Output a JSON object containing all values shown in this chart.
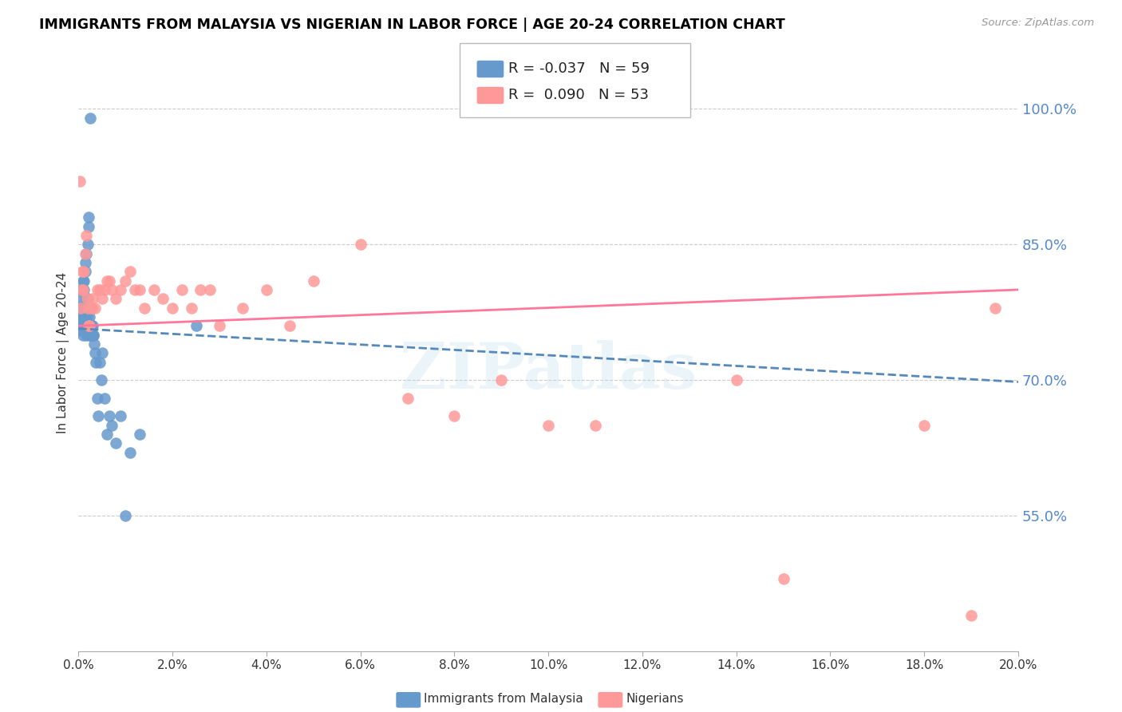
{
  "title": "IMMIGRANTS FROM MALAYSIA VS NIGERIAN IN LABOR FORCE | AGE 20-24 CORRELATION CHART",
  "source": "Source: ZipAtlas.com",
  "ylabel": "In Labor Force | Age 20-24",
  "yticks": [
    0.55,
    0.7,
    0.85,
    1.0
  ],
  "ytick_labels": [
    "55.0%",
    "70.0%",
    "85.0%",
    "100.0%"
  ],
  "xmin": 0.0,
  "xmax": 0.2,
  "ymin": 0.4,
  "ymax": 1.06,
  "legend_blue_r": "-0.037",
  "legend_blue_n": "59",
  "legend_pink_r": "0.090",
  "legend_pink_n": "53",
  "blue_color": "#6699CC",
  "pink_color": "#FF9999",
  "blue_line_color": "#5588BB",
  "pink_line_color": "#FF7799",
  "watermark": "ZIPatlas",
  "malaysia_x": [
    0.0002,
    0.0003,
    0.0004,
    0.0005,
    0.0006,
    0.0007,
    0.0008,
    0.0009,
    0.001,
    0.001,
    0.0011,
    0.0012,
    0.0012,
    0.0013,
    0.0013,
    0.0014,
    0.0015,
    0.0015,
    0.0016,
    0.0016,
    0.0017,
    0.0017,
    0.0018,
    0.0018,
    0.0019,
    0.002,
    0.002,
    0.0021,
    0.0022,
    0.0022,
    0.0023,
    0.0023,
    0.0024,
    0.0025,
    0.0026,
    0.0027,
    0.0028,
    0.0029,
    0.003,
    0.0031,
    0.0032,
    0.0034,
    0.0035,
    0.0037,
    0.004,
    0.0042,
    0.0045,
    0.0048,
    0.005,
    0.0055,
    0.006,
    0.0065,
    0.007,
    0.008,
    0.009,
    0.01,
    0.011,
    0.013,
    0.025
  ],
  "malaysia_y": [
    0.76,
    0.78,
    0.755,
    0.8,
    0.79,
    0.77,
    0.76,
    0.81,
    0.75,
    0.77,
    0.76,
    0.8,
    0.81,
    0.78,
    0.77,
    0.76,
    0.82,
    0.83,
    0.84,
    0.75,
    0.76,
    0.79,
    0.78,
    0.77,
    0.85,
    0.76,
    0.79,
    0.87,
    0.88,
    0.76,
    0.77,
    0.75,
    0.76,
    0.99,
    0.75,
    0.76,
    0.76,
    0.75,
    0.76,
    0.75,
    0.75,
    0.74,
    0.73,
    0.72,
    0.68,
    0.66,
    0.72,
    0.7,
    0.73,
    0.68,
    0.64,
    0.66,
    0.65,
    0.63,
    0.66,
    0.55,
    0.62,
    0.64,
    0.76
  ],
  "nigerian_x": [
    0.0002,
    0.0004,
    0.0006,
    0.0008,
    0.001,
    0.0012,
    0.0014,
    0.0016,
    0.0018,
    0.002,
    0.0022,
    0.0024,
    0.0026,
    0.0028,
    0.003,
    0.0035,
    0.004,
    0.0045,
    0.005,
    0.0055,
    0.006,
    0.0065,
    0.007,
    0.008,
    0.009,
    0.01,
    0.011,
    0.012,
    0.013,
    0.014,
    0.016,
    0.018,
    0.02,
    0.022,
    0.024,
    0.026,
    0.028,
    0.03,
    0.035,
    0.04,
    0.045,
    0.05,
    0.06,
    0.07,
    0.08,
    0.09,
    0.1,
    0.11,
    0.14,
    0.15,
    0.18,
    0.19,
    0.195
  ],
  "nigerian_y": [
    0.92,
    0.78,
    0.8,
    0.82,
    0.8,
    0.82,
    0.84,
    0.86,
    0.79,
    0.78,
    0.76,
    0.76,
    0.78,
    0.78,
    0.79,
    0.78,
    0.8,
    0.8,
    0.79,
    0.8,
    0.81,
    0.81,
    0.8,
    0.79,
    0.8,
    0.81,
    0.82,
    0.8,
    0.8,
    0.78,
    0.8,
    0.79,
    0.78,
    0.8,
    0.78,
    0.8,
    0.8,
    0.76,
    0.78,
    0.8,
    0.76,
    0.81,
    0.85,
    0.68,
    0.66,
    0.7,
    0.65,
    0.65,
    0.7,
    0.48,
    0.65,
    0.44,
    0.78
  ],
  "blue_line_x": [
    0.0,
    0.2
  ],
  "blue_line_y": [
    0.757,
    0.698
  ],
  "pink_line_x": [
    0.0,
    0.2
  ],
  "pink_line_y": [
    0.76,
    0.8
  ]
}
